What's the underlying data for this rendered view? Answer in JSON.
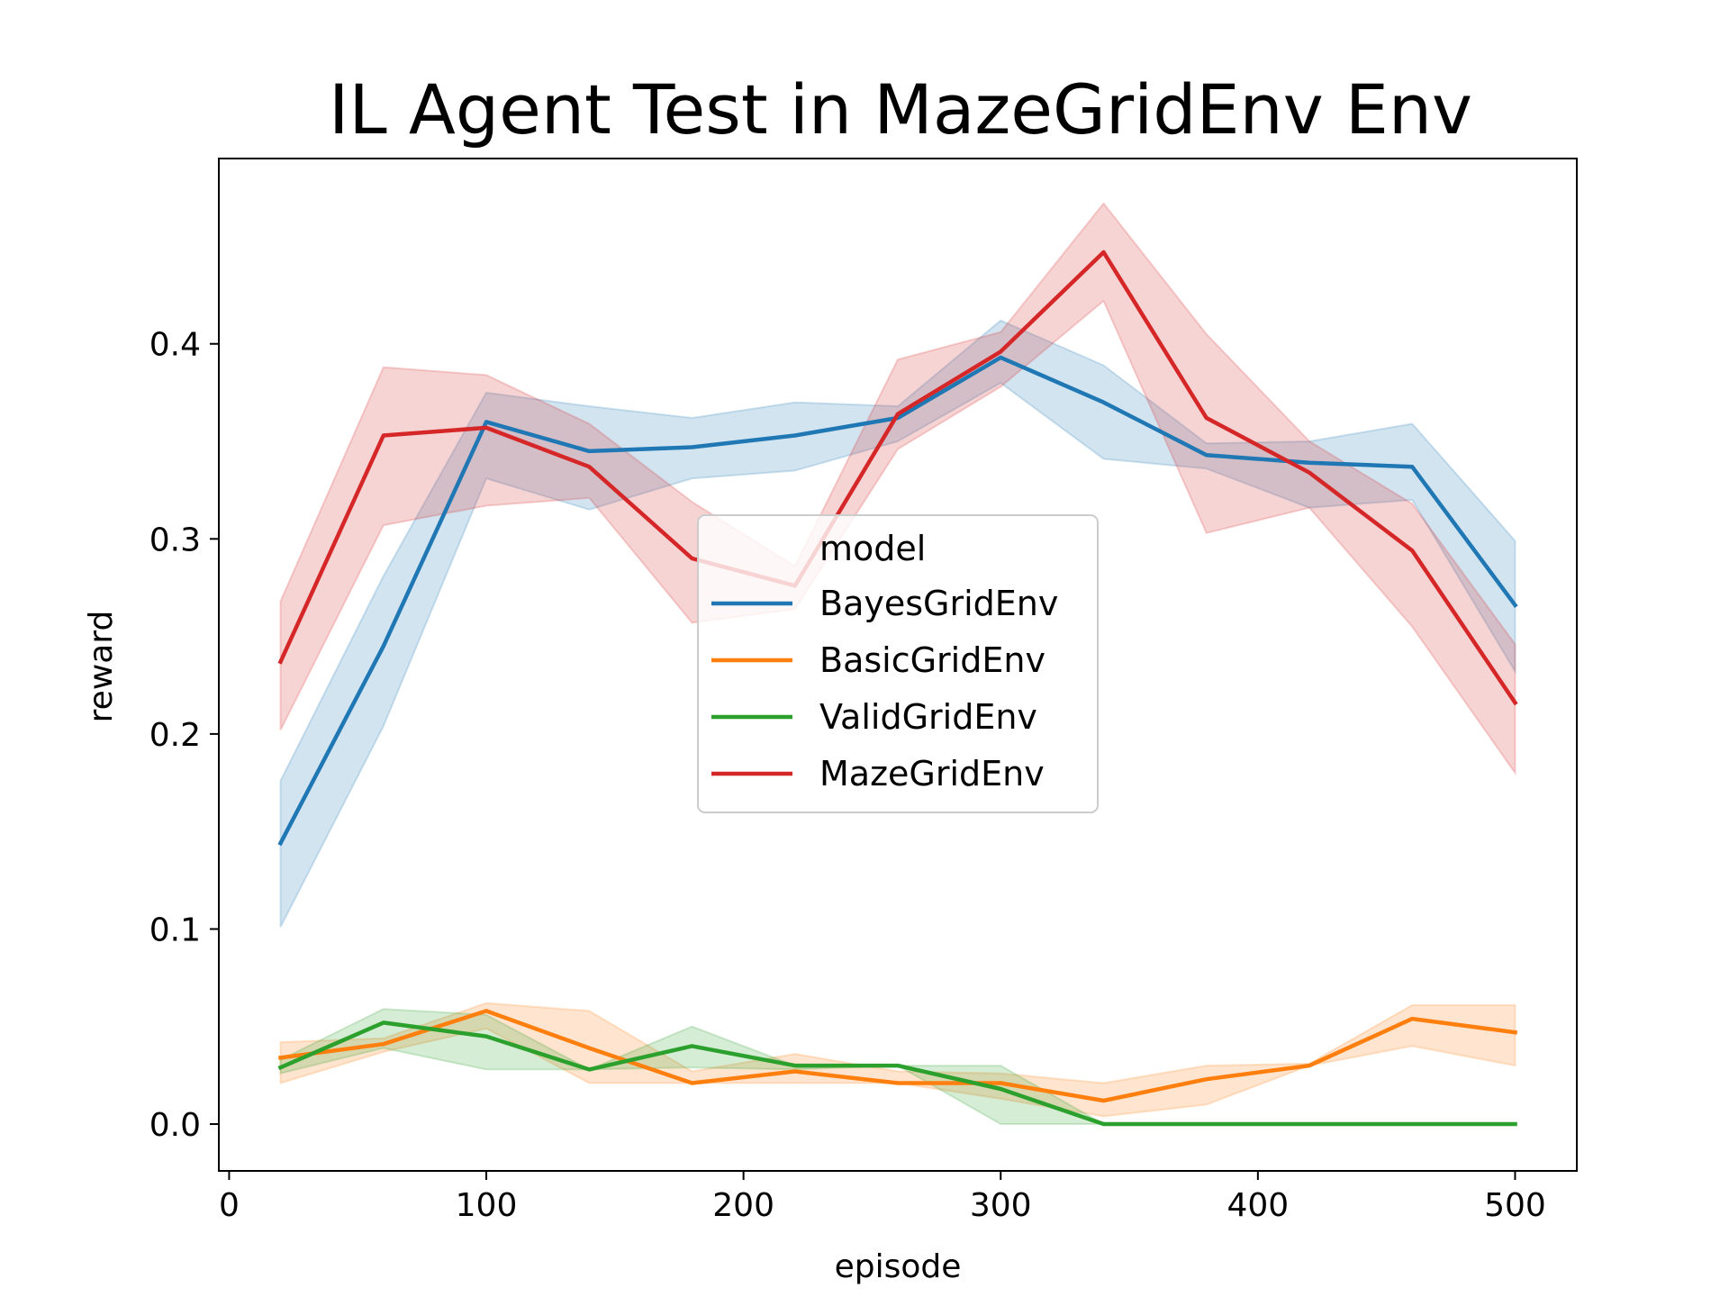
{
  "chart_data": {
    "type": "line",
    "title": "IL Agent Test in MazeGridEnv Env",
    "xlabel": "episode",
    "ylabel": "reward",
    "xlim": [
      -4,
      524
    ],
    "ylim": [
      -0.024,
      0.495
    ],
    "xticks": [
      0,
      100,
      200,
      300,
      400,
      500
    ],
    "yticks": [
      0.0,
      0.1,
      0.2,
      0.3,
      0.4
    ],
    "xtick_labels": [
      "0",
      "100",
      "200",
      "300",
      "400",
      "500"
    ],
    "ytick_labels": [
      "0.0",
      "0.1",
      "0.2",
      "0.3",
      "0.4"
    ],
    "grid": false,
    "legend": {
      "title": "model",
      "placement": "center"
    },
    "x": [
      20,
      60,
      100,
      140,
      180,
      220,
      260,
      300,
      340,
      380,
      420,
      460,
      500
    ],
    "series": [
      {
        "name": "BayesGridEnv",
        "color": "#1f77b4",
        "values": [
          0.144,
          0.245,
          0.36,
          0.345,
          0.347,
          0.353,
          0.362,
          0.393,
          0.37,
          0.343,
          0.339,
          0.337,
          0.266
        ],
        "lower": [
          0.101,
          0.204,
          0.331,
          0.315,
          0.331,
          0.335,
          0.35,
          0.38,
          0.341,
          0.336,
          0.316,
          0.32,
          0.232
        ],
        "upper": [
          0.176,
          0.281,
          0.375,
          0.368,
          0.362,
          0.37,
          0.368,
          0.412,
          0.389,
          0.349,
          0.35,
          0.359,
          0.299
        ]
      },
      {
        "name": "BasicGridEnv",
        "color": "#ff7f0e",
        "values": [
          0.034,
          0.041,
          0.058,
          0.039,
          0.021,
          0.027,
          0.021,
          0.021,
          0.012,
          0.023,
          0.03,
          0.054,
          0.047
        ],
        "lower": [
          0.021,
          0.037,
          0.049,
          0.021,
          0.021,
          0.021,
          0.021,
          0.013,
          0.004,
          0.01,
          0.03,
          0.04,
          0.03
        ],
        "upper": [
          0.042,
          0.044,
          0.062,
          0.058,
          0.027,
          0.036,
          0.027,
          0.026,
          0.021,
          0.03,
          0.031,
          0.061,
          0.061
        ]
      },
      {
        "name": "ValidGridEnv",
        "color": "#2ca02c",
        "values": [
          0.029,
          0.052,
          0.045,
          0.028,
          0.04,
          0.03,
          0.03,
          0.018,
          0.0,
          0.0,
          0.0,
          0.0,
          0.0
        ],
        "lower": [
          0.026,
          0.039,
          0.028,
          0.028,
          0.029,
          0.028,
          0.03,
          0.0,
          0.0,
          0.0,
          0.0,
          0.0,
          0.0
        ],
        "upper": [
          0.033,
          0.059,
          0.056,
          0.028,
          0.05,
          0.03,
          0.03,
          0.03,
          0.0,
          0.0,
          0.0,
          0.0,
          0.0
        ]
      },
      {
        "name": "MazeGridEnv",
        "color": "#d62728",
        "values": [
          0.237,
          0.353,
          0.357,
          0.337,
          0.29,
          0.276,
          0.364,
          0.396,
          0.447,
          0.362,
          0.334,
          0.294,
          0.216
        ],
        "lower": [
          0.202,
          0.307,
          0.317,
          0.321,
          0.257,
          0.264,
          0.346,
          0.378,
          0.422,
          0.303,
          0.316,
          0.255,
          0.18
        ],
        "upper": [
          0.268,
          0.388,
          0.384,
          0.359,
          0.319,
          0.286,
          0.392,
          0.406,
          0.472,
          0.405,
          0.35,
          0.318,
          0.246
        ]
      }
    ]
  }
}
